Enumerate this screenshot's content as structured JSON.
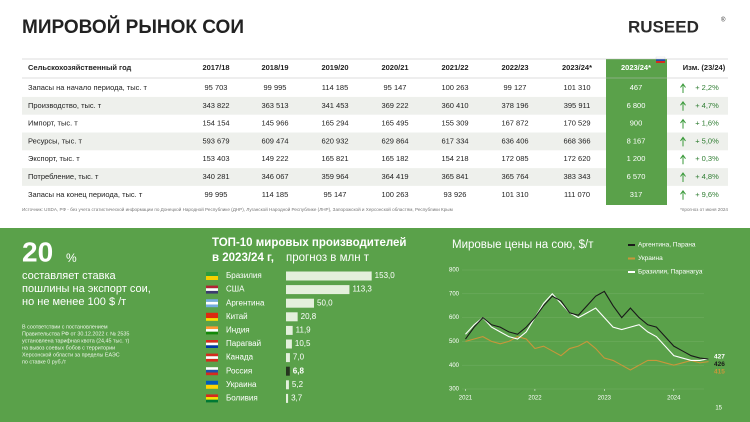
{
  "header": {
    "title": "МИРОВОЙ РЫНОК СОИ",
    "logo": "RUSEED",
    "logo_mark": "®"
  },
  "table": {
    "columns": [
      "Сельскохозяйственный год",
      "2017/18",
      "2018/19",
      "2019/20",
      "2020/21",
      "2021/22",
      "2022/23",
      "2023/24*",
      "2023/24*",
      "Изм. (23/24)"
    ],
    "rows": [
      [
        "Запасы на начало периода, тыс. т",
        "95 703",
        "99 995",
        "114 185",
        "95 147",
        "100 263",
        "99 127",
        "101 310",
        "467",
        "+ 2,2%"
      ],
      [
        "Производство, тыс. т",
        "343 822",
        "363 513",
        "341 453",
        "369 222",
        "360 410",
        "378 196",
        "395 911",
        "6 800",
        "+ 4,7%"
      ],
      [
        "Импорт, тыс. т",
        "154 154",
        "145 966",
        "165 294",
        "165 495",
        "155 309",
        "167 872",
        "170 529",
        "900",
        "+ 1,6%"
      ],
      [
        "Ресурсы, тыс. т",
        "593 679",
        "609 474",
        "620 932",
        "629 864",
        "617 334",
        "636 406",
        "668 366",
        "8 167",
        "+ 5,0%"
      ],
      [
        "Экспорт, тыс. т",
        "153 403",
        "149 222",
        "165 821",
        "165 182",
        "154 218",
        "172 085",
        "172 620",
        "1 200",
        "+ 0,3%"
      ],
      [
        "Потребление, тыс. т",
        "340 281",
        "346 067",
        "359 964",
        "364 419",
        "365 841",
        "365 764",
        "383 343",
        "6 570",
        "+ 4,8%"
      ],
      [
        "Запасы на конец периода, тыс. т",
        "99 995",
        "114 185",
        "95 147",
        "100 263",
        "93 926",
        "101 310",
        "111 070",
        "317",
        "+ 9,6%"
      ]
    ],
    "source": "Источник: USDA, РФ - без учета статистической информации по Донецкой Народной Республике (ДНР), Луганской Народной Республике (ЛНР), Запорожской и Херсонской областям, Республики Крым",
    "forecast_note": "*прогноз от июня 2024"
  },
  "duty": {
    "value": "20",
    "unit": "%",
    "text_lines": [
      "составляет ставка",
      "пошлины на экспорт сои,",
      "но не менее 100 $ /т"
    ],
    "note_lines": [
      "В соответствии с постановлением",
      "Правительства РФ от 30.12.2022 г. № 2535",
      "установлена тарифная квота (24,45 тыс. т)",
      "на вывоз соевых бобов с территории",
      "Херсонской области за пределы ЕАЭС",
      "по ставке 0 руб./т"
    ]
  },
  "chart_data": [
    {
      "type": "bar",
      "orientation": "horizontal",
      "title_lines": [
        "ТОП-10 мировых производителей",
        "в 2023/24 г,"
      ],
      "subtitle": "прогноз в млн т",
      "categories": [
        "Бразилия",
        "США",
        "Аргентина",
        "Китай",
        "Индия",
        "Парагвай",
        "Канада",
        "Россия",
        "Украина",
        "Боливия"
      ],
      "values": [
        153,
        113.3,
        50,
        20.8,
        11.9,
        10.5,
        7,
        6.8,
        5.2,
        3.7
      ],
      "value_labels": [
        "153,0",
        "113,3",
        "50,0",
        "20,8",
        "11,9",
        "10,5",
        "7,0",
        "6,8",
        "5,2",
        "3,7"
      ],
      "colors": [
        "#e4f0dc",
        "#e4f0dc",
        "#e4f0dc",
        "#e4f0dc",
        "#e4f0dc",
        "#e4f0dc",
        "#e4f0dc",
        "#26351f",
        "#e4f0dc",
        "#e4f0dc"
      ]
    },
    {
      "type": "line",
      "title": "Мировые цены на сою, $/т",
      "legend": "top-right",
      "grid": true,
      "x": [
        2021,
        2021.125,
        2021.25,
        2021.375,
        2021.5,
        2021.625,
        2021.75,
        2021.875,
        2022,
        2022.125,
        2022.25,
        2022.375,
        2022.5,
        2022.625,
        2022.75,
        2022.875,
        2023,
        2023.125,
        2023.25,
        2023.375,
        2023.5,
        2023.625,
        2023.75,
        2023.875,
        2024,
        2024.125,
        2024.25,
        2024.375,
        2024.5
      ],
      "series": [
        {
          "name": "Аргентина, Парана",
          "color": "#1a1a1a",
          "values": [
            510,
            560,
            600,
            570,
            560,
            540,
            530,
            560,
            600,
            650,
            690,
            670,
            620,
            610,
            650,
            690,
            710,
            650,
            600,
            640,
            600,
            570,
            560,
            520,
            480,
            460,
            440,
            430,
            426
          ]
        },
        {
          "name": "Украина",
          "color": "#c9963a",
          "values": [
            500,
            510,
            520,
            500,
            490,
            500,
            520,
            510,
            470,
            480,
            460,
            440,
            470,
            480,
            500,
            470,
            430,
            420,
            400,
            380,
            400,
            420,
            420,
            410,
            400,
            410,
            420,
            410,
            415
          ]
        },
        {
          "name": "Бразилия, Паранагуа",
          "color": "#ffffff",
          "values": [
            530,
            570,
            600,
            560,
            540,
            520,
            510,
            540,
            600,
            660,
            700,
            660,
            620,
            600,
            620,
            640,
            600,
            560,
            550,
            560,
            570,
            540,
            520,
            480,
            440,
            430,
            420,
            420,
            427
          ]
        }
      ],
      "xlim": [
        2020.95,
        2024.55
      ],
      "xticks": [
        2021,
        2022,
        2023,
        2024
      ],
      "ylim": [
        300,
        800
      ],
      "yticks": [
        300,
        400,
        500,
        600,
        700,
        800
      ]
    }
  ],
  "page": "15"
}
